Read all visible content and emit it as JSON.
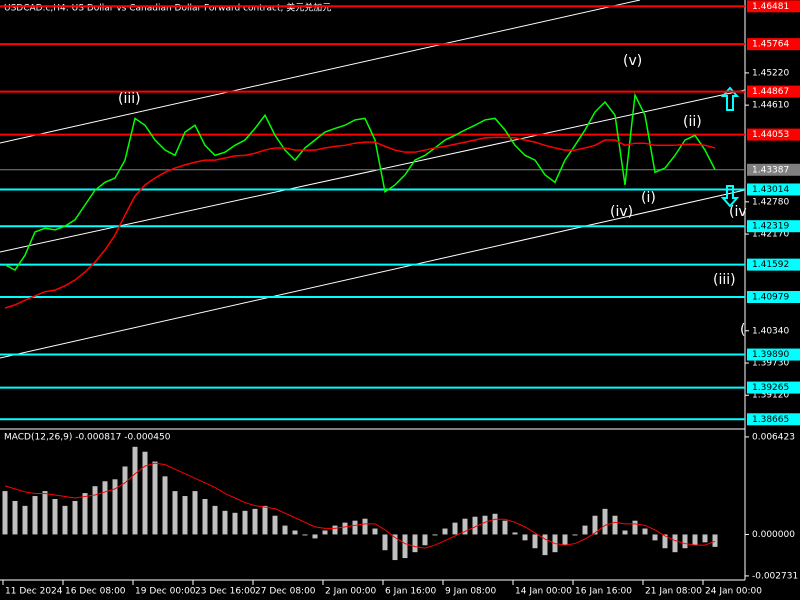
{
  "chart_data": [
    {
      "type": "line",
      "title": "USDCAD.c,H4:  US Dollar vs Canadian Dollar Forward contract, 美元兑加元",
      "categories": [
        "11 Dec 2024",
        null,
        null,
        null,
        null,
        null,
        "16 Dec 08:00",
        null,
        null,
        null,
        null,
        null,
        null,
        "19 Dec 00:00",
        null,
        null,
        null,
        null,
        null,
        "23 Dec 16:00",
        null,
        null,
        null,
        null,
        null,
        "27 Dec 08:00",
        null,
        null,
        null,
        null,
        null,
        null,
        "2 Jan 00:00",
        null,
        null,
        null,
        null,
        null,
        "6 Jan 16:00",
        null,
        null,
        null,
        null,
        null,
        "9 Jan 08:00",
        null,
        null,
        null,
        null,
        null,
        null,
        "14 Jan 00:00",
        null,
        null,
        null,
        null,
        null,
        "16 Jan 16:00",
        null,
        null,
        null,
        null,
        null,
        null,
        "21 Jan 08:00",
        null,
        null,
        null,
        null,
        null,
        "24 Jan 00:00",
        null
      ],
      "series": [
        {
          "color": "#00ff00",
          "values": [
            1.4159,
            1.4149,
            1.4177,
            1.4221,
            1.4228,
            1.4225,
            1.4232,
            1.4244,
            1.4272,
            1.43,
            1.4315,
            1.4323,
            1.4357,
            1.4436,
            1.4423,
            1.4395,
            1.4376,
            1.4366,
            1.441,
            1.4423,
            1.4385,
            1.4366,
            1.4372,
            1.4385,
            1.4395,
            1.4417,
            1.4442,
            1.4404,
            1.4376,
            1.4357,
            1.438,
            1.4395,
            1.441,
            1.4417,
            1.4423,
            1.4433,
            1.4436,
            1.4395,
            1.4297,
            1.431,
            1.4329,
            1.4357,
            1.4366,
            1.438,
            1.4395,
            1.4404,
            1.4414,
            1.4423,
            1.4433,
            1.4436,
            1.4414,
            1.4385,
            1.4366,
            1.4357,
            1.4329,
            1.4315,
            1.4357,
            1.4385,
            1.4414,
            1.4448,
            1.4467,
            1.4442,
            1.431,
            1.448,
            1.4442,
            1.4334,
            1.4342,
            1.4366,
            1.4395,
            1.4404,
            1.4376,
            1.4339
          ]
        },
        {
          "color": "#ff0000",
          "values": [
            1.4077,
            1.4083,
            1.4092,
            1.41,
            1.4108,
            1.4111,
            1.4119,
            1.413,
            1.4145,
            1.4164,
            1.4187,
            1.4215,
            1.4253,
            1.4289,
            1.431,
            1.4323,
            1.4334,
            1.4342,
            1.4348,
            1.4353,
            1.4357,
            1.4357,
            1.4361,
            1.4365,
            1.4366,
            1.437,
            1.4376,
            1.438,
            1.438,
            1.4376,
            1.4376,
            1.4376,
            1.438,
            1.4383,
            1.4385,
            1.4389,
            1.4391,
            1.4391,
            1.4383,
            1.4376,
            1.4372,
            1.4372,
            1.4376,
            1.438,
            1.4383,
            1.4387,
            1.4391,
            1.4395,
            1.4399,
            1.44,
            1.44,
            1.4399,
            1.4395,
            1.4391,
            1.4385,
            1.438,
            1.4376,
            1.4376,
            1.438,
            1.4385,
            1.4395,
            1.4395,
            1.4385,
            1.4389,
            1.4389,
            1.4385,
            1.4385,
            1.4385,
            1.4387,
            1.4387,
            1.4385,
            1.438
          ]
        }
      ],
      "ylim": [
        1.385,
        1.466
      ],
      "yticks": [
        {
          "value": 1.4522,
          "label": "1.45220"
        },
        {
          "value": 1.4461,
          "label": "1.44610"
        },
        {
          "value": 1.4278,
          "label": "1.42780"
        },
        {
          "value": 1.4217,
          "label": "1.42170"
        },
        {
          "value": 1.4034,
          "label": "1.40340"
        },
        {
          "value": 1.3973,
          "label": "1.39730"
        },
        {
          "value": 1.3912,
          "label": "1.39120"
        }
      ],
      "levels": [
        {
          "value": 1.46481,
          "color": "#ff0000"
        },
        {
          "value": 1.45764,
          "color": "#ff0000"
        },
        {
          "value": 1.44867,
          "color": "#ff0000"
        },
        {
          "value": 1.44053,
          "color": "#ff0000"
        },
        {
          "value": 1.43014,
          "color": "#00ffff"
        },
        {
          "value": 1.42319,
          "color": "#00ffff"
        },
        {
          "value": 1.41592,
          "color": "#00ffff"
        },
        {
          "value": 1.40979,
          "color": "#00ffff"
        },
        {
          "value": 1.3989,
          "label": "1.39890",
          "color": "#00ffff"
        },
        {
          "value": 1.39265,
          "color": "#00ffff"
        },
        {
          "value": 1.38665,
          "color": "#00ffff"
        }
      ],
      "last_price": 1.43387,
      "annotations": [
        "(iii)",
        "(v)",
        "(iv)",
        "(i)",
        "(ii)",
        "(iv",
        "(iii)",
        "("
      ]
    },
    {
      "type": "bar",
      "title": "MACD(12,26,9) -0.000817 -0.000450",
      "series": [
        {
          "color": "#c0c0c0",
          "values": [
            0.002855,
            0.002206,
            0.001882,
            0.00253,
            0.002855,
            0.002336,
            0.001882,
            0.002206,
            0.002725,
            0.003179,
            0.003504,
            0.003633,
            0.004477,
            0.005774,
            0.00545,
            0.004801,
            0.003828,
            0.002855,
            0.00253,
            0.002855,
            0.002336,
            0.001882,
            0.001557,
            0.001427,
            0.001557,
            0.001687,
            0.001882,
            0.001233,
            0.000584,
            0.00026,
            -6.5e-05,
            -0.00026,
            0.00026,
            0.000584,
            0.000779,
            0.000908,
            0.001038,
            0.000389,
            -0.001038,
            -0.001687,
            -0.001557,
            -0.001168,
            -0.000714,
            -6.5e-05,
            0.000389,
            0.000779,
            0.001038,
            0.001168,
            0.001233,
            0.001362,
            0.000908,
            0.00013,
            -0.000389,
            -0.000908,
            -0.001362,
            -0.001168,
            -0.000714,
            -6.5e-05,
            0.000584,
            0.001233,
            0.001687,
            0.001233,
            0.00026,
            0.000908,
            0.000389,
            -0.000389,
            -0.000908,
            -0.001168,
            -0.000908,
            -0.000714,
            -0.000519,
            -0.000817
          ]
        },
        {
          "color": "#ff0000",
          "values": [
            0.0032,
            0.003,
            0.0028,
            0.0027,
            0.0027,
            0.0026,
            0.0025,
            0.0024,
            0.0025,
            0.0026,
            0.0028,
            0.003,
            0.0034,
            0.004,
            0.0045,
            0.0047,
            0.0046,
            0.0043,
            0.004,
            0.0037,
            0.0034,
            0.0031,
            0.0027,
            0.0024,
            0.0021,
            0.0019,
            0.0018,
            0.0017,
            0.0014,
            0.0011,
            0.0008,
            0.0005,
            0.0004,
            0.0004,
            0.0005,
            0.0006,
            0.0007,
            0.0007,
            0.0003,
            -0.0002,
            -0.0006,
            -0.0008,
            -0.0009,
            -0.0007,
            -0.0004,
            -0.0001,
            0.0002,
            0.0005,
            0.0008,
            0.001,
            0.001,
            0.0008,
            0.0005,
            0.0001,
            -0.0003,
            -0.0006,
            -0.0007,
            -0.0006,
            -0.0003,
            0.0001,
            0.0006,
            0.0008,
            0.0007,
            0.0007,
            0.0006,
            0.0003,
            -0.0001,
            -0.0004,
            -0.0006,
            -0.0007,
            -0.0007,
            -0.00045
          ]
        }
      ],
      "ylim": [
        -0.003,
        0.00688
      ],
      "yticks": [
        0.006423,
        {
          "value": 0,
          "label": "0.000000"
        },
        -0.002731
      ]
    }
  ]
}
